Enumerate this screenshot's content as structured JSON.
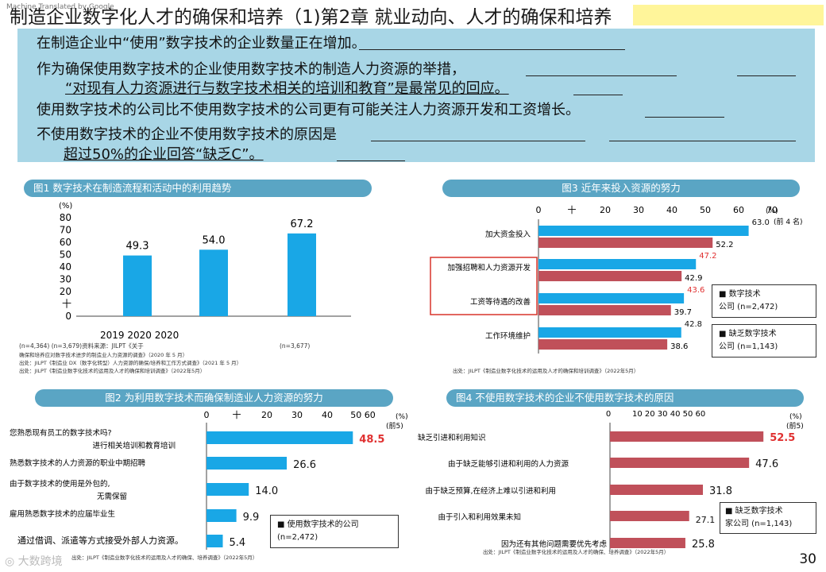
{
  "watermark": "Machine Translated by Google",
  "title": "制造企业数字化人才的确保和培养（1)第2章 就业动向、人才的确保和培养",
  "summary": [
    "在制造企业中“使用”数字技术的企业数量正在增加。",
    "作为确保使用数字技术的企业使用数字技术的制造人力资源的举措，",
    "“对现有人力资源进行与数字技术相关的培训和教育”是最常见的回应。",
    "使用数字技术的公司比不使用数字技术的公司更有可能关注人力资源开发和工资增长。",
    "不使用数字技术的企业不使用数字技术的原因是",
    "超过50%的企业回答“缺乏C”。"
  ],
  "page_number": "30",
  "logo_text": "大数跨境",
  "colors": {
    "blue": "#19a7e6",
    "red": "#c0505a",
    "panel": "#5aa5c4",
    "summary_bg": "#a8d6e6",
    "highlight_red": "#e03030"
  },
  "chart_data": [
    {
      "id": "fig1",
      "type": "bar",
      "title": "图1 数字技术在制造流程和活动中的利用趋势",
      "ylabel": "(%)",
      "yticks": [
        "80",
        "70",
        "60",
        "50",
        "40",
        "30",
        "20",
        "十",
        "0"
      ],
      "ylim": [
        0,
        80
      ],
      "values": [
        49.3,
        54.0,
        67.2
      ],
      "value_labels": [
        "49.3",
        "54.0",
        "67.2"
      ],
      "xlabel_text": "2019 2020 2020",
      "notes": [
        "(n=4,364) (n=3,679)资料来源：JILPT《关于",
        "(n=3,677)"
      ],
      "source": [
        "确保和培养应对数字技术进步的制造业人力资源的调查》（2020 年 5 月）",
        "出处：JILPT《制造业 DX（数字化转型）人力资源的确保/培养和工作方式调查》（2021 年 5 月）",
        "出处：JILPT《制造业数字化技术的运用及人才的确保和培训调查》（2022年5月）"
      ]
    },
    {
      "id": "fig3",
      "type": "bar",
      "title": "图3 近年来投入资源的努力",
      "xticks": [
        "0",
        "十",
        "20",
        "30",
        "40",
        "50",
        "60",
        "70"
      ],
      "xlim": [
        0,
        70
      ],
      "unit": "(%)",
      "note": "(前 4 名)",
      "categories": [
        "加大资金投入",
        "加强招聘和人力资源开发",
        "工资等待遇的改善",
        "工作环境维护"
      ],
      "series": [
        {
          "name": "数字技术",
          "values": [
            63.0,
            47.2,
            43.6,
            42.8
          ],
          "labels": [
            "63.0",
            "47.2",
            "43.6",
            "42.8"
          ]
        },
        {
          "name": "缺乏数字技术",
          "values": [
            52.2,
            42.9,
            39.7,
            38.6
          ],
          "labels": [
            "52.2",
            "42.9",
            "39.7",
            "38.6"
          ]
        }
      ],
      "legend": [
        {
          "label": "数字技术",
          "n": "公司 (n=2,472)"
        },
        {
          "label": "缺乏数字技术",
          "n": "公司 (n=1,143)"
        }
      ],
      "source": "出处：JILPT《制造业数字化技术的运用及人才的确保和培训调查》（2022年5月）"
    },
    {
      "id": "fig2",
      "type": "bar",
      "title": "图2 为利用数字技术而确保制造业人力资源的努力",
      "xticks": [
        "0",
        "十",
        "20",
        "30",
        "40",
        "50 60"
      ],
      "xlim": [
        0,
        60
      ],
      "unit": "(%)",
      "note": "(前5)",
      "categories": [
        "您熟悉现有员工的数字技术吗?",
        "进行相关培训和教育培训",
        "熟悉数字技术的人力资源的职业中期招聘",
        "由于数字技术的使用是外包的,",
        "无需保留",
        "雇用熟悉数字技术的应届毕业生",
        "通过借调、派遣等方式接受外部人力资源。"
      ],
      "values": [
        48.5,
        26.6,
        14.0,
        9.9,
        5.4
      ],
      "labels": [
        "48.5",
        "26.6",
        "14.0",
        "9.9",
        "5.4"
      ],
      "legend": {
        "label": "使用数字技术的公司",
        "n": "(n=2,472)"
      },
      "source": "出处：JILPT《制造业数字化技术的运用及人才的确保、培养调查》（2022年5月）"
    },
    {
      "id": "fig4",
      "type": "bar",
      "title": "图4 不使用数字技术的企业不使用数字技术的原因",
      "xticks": [
        "0",
        "10 20 30 40 50 60"
      ],
      "xlim": [
        0,
        60
      ],
      "unit": "(%)",
      "note": "(前5)",
      "categories": [
        "缺乏引进和利用知识",
        "由于缺乏能够引进和利用的人力资源",
        "由于缺乏预算,在经济上难以引进和利用",
        "由于引入和利用效果未知",
        "因为还有其他问题需要优先考虑"
      ],
      "values": [
        52.5,
        47.6,
        31.8,
        27.1,
        25.8
      ],
      "labels": [
        "52.5",
        "47.6",
        "31.8",
        "27.1",
        "25.8"
      ],
      "legend": {
        "label": "缺乏数字技术",
        "n": "家公司 (n=1,143)"
      },
      "source": "出处：JILPT《制造业数字化技术的运用及人才的确保、培养调查》（2022年5月）"
    }
  ]
}
